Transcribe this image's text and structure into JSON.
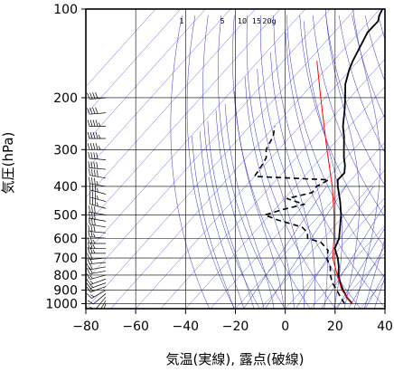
{
  "chart_data": {
    "type": "line",
    "chart_kind": "skew-T log-P aerological diagram",
    "xlabel": "気温(実線), 露点(破線)",
    "ylabel": "気圧(hPa)",
    "x_range": [
      -80,
      40
    ],
    "x_ticks": [
      -80,
      -60,
      -40,
      -20,
      0,
      20,
      40
    ],
    "x_tick_labels": [
      "−80",
      "−60",
      "−40",
      "−20",
      "0",
      "20",
      "40"
    ],
    "y_range_hPa": [
      1040,
      100
    ],
    "y_scale": "log",
    "y_ticks": [
      100,
      200,
      300,
      400,
      500,
      600,
      700,
      800,
      900,
      1000
    ],
    "y_tick_labels": [
      "100",
      "200",
      "300",
      "400",
      "500",
      "600",
      "700",
      "800",
      "900",
      "1000"
    ],
    "grid": true,
    "mixing_ratio_labels": [
      "1",
      "5",
      "10",
      "15",
      "20g"
    ],
    "colors": {
      "temperature": "#000000",
      "dewpoint": "#000000",
      "parcel": "#ff0000",
      "guide_lines": "#3333cc",
      "grid": "#000000",
      "wind_barbs": "#000000"
    },
    "series": [
      {
        "key": "temperature",
        "style": "solid",
        "points_at_pressure": [
          [
            1000,
            25.0
          ],
          [
            950,
            20.5
          ],
          [
            900,
            16.6
          ],
          [
            850,
            12.8
          ],
          [
            800,
            9.2
          ],
          [
            750,
            6.4
          ],
          [
            700,
            2.8
          ],
          [
            650,
            -1.8
          ],
          [
            600,
            -3.8
          ],
          [
            550,
            -7.4
          ],
          [
            500,
            -11.4
          ],
          [
            450,
            -16.6
          ],
          [
            400,
            -23.0
          ],
          [
            380,
            -25.4
          ],
          [
            360,
            -25.2
          ],
          [
            340,
            -27.6
          ],
          [
            320,
            -30.8
          ],
          [
            300,
            -33.8
          ],
          [
            270,
            -38.6
          ],
          [
            250,
            -42.6
          ],
          [
            220,
            -47.8
          ],
          [
            200,
            -52.0
          ],
          [
            180,
            -56.8
          ],
          [
            160,
            -60.6
          ],
          [
            150,
            -62.2
          ],
          [
            130,
            -65.0
          ],
          [
            120,
            -66.6
          ],
          [
            110,
            -66.4
          ],
          [
            105,
            -68.0
          ],
          [
            100,
            -69.0
          ]
        ]
      },
      {
        "key": "dewpoint",
        "style": "dashed",
        "points_at_pressure": [
          [
            1000,
            22.0
          ],
          [
            950,
            18.0
          ],
          [
            900,
            14.0
          ],
          [
            850,
            9.6
          ],
          [
            800,
            6.0
          ],
          [
            750,
            3.0
          ],
          [
            700,
            -1.6
          ],
          [
            660,
            -3.8
          ],
          [
            630,
            -8.0
          ],
          [
            620,
            -9.5
          ],
          [
            600,
            -16.4
          ],
          [
            575,
            -18.4
          ],
          [
            550,
            -22.6
          ],
          [
            520,
            -35.0
          ],
          [
            500,
            -42.0
          ],
          [
            480,
            -37.0
          ],
          [
            460,
            -30.0
          ],
          [
            440,
            -39.0
          ],
          [
            420,
            -31.0
          ],
          [
            400,
            -31.5
          ],
          [
            380,
            -29.0
          ],
          [
            370,
            -60.0
          ],
          [
            340,
            -61.0
          ],
          [
            320,
            -62.0
          ],
          [
            300,
            -65.0
          ],
          [
            270,
            -67.0
          ],
          [
            250,
            -70.0
          ]
        ]
      },
      {
        "key": "parcel",
        "style": "solid",
        "points_at_pressure": [
          [
            1000,
            25.0
          ],
          [
            900,
            16.0
          ],
          [
            800,
            8.8
          ],
          [
            700,
            0.8
          ],
          [
            600,
            -5.8
          ],
          [
            500,
            -14.2
          ],
          [
            400,
            -25.2
          ],
          [
            300,
            -40.6
          ],
          [
            200,
            -61.8
          ],
          [
            150,
            -76.6
          ]
        ]
      }
    ],
    "wind_barbs": {
      "x_position_data": -72,
      "levels_hPa": [
        1000,
        975,
        950,
        925,
        900,
        875,
        850,
        825,
        800,
        775,
        750,
        725,
        700,
        675,
        650,
        625,
        600,
        575,
        550,
        525,
        500,
        475,
        450,
        425,
        400,
        375,
        350,
        325,
        300,
        275,
        250,
        225,
        200
      ],
      "direction_deg": [
        200,
        210,
        220,
        230,
        240,
        250,
        250,
        250,
        255,
        260,
        260,
        265,
        265,
        270,
        270,
        270,
        275,
        275,
        280,
        280,
        280,
        285,
        285,
        285,
        280,
        280,
        275,
        275,
        270,
        270,
        270,
        265,
        265
      ],
      "speed_kt": [
        5,
        8,
        10,
        12,
        15,
        15,
        15,
        15,
        18,
        20,
        20,
        22,
        22,
        25,
        25,
        25,
        28,
        30,
        30,
        30,
        32,
        35,
        35,
        35,
        38,
        40,
        40,
        42,
        45,
        45,
        45,
        40,
        40
      ]
    }
  }
}
